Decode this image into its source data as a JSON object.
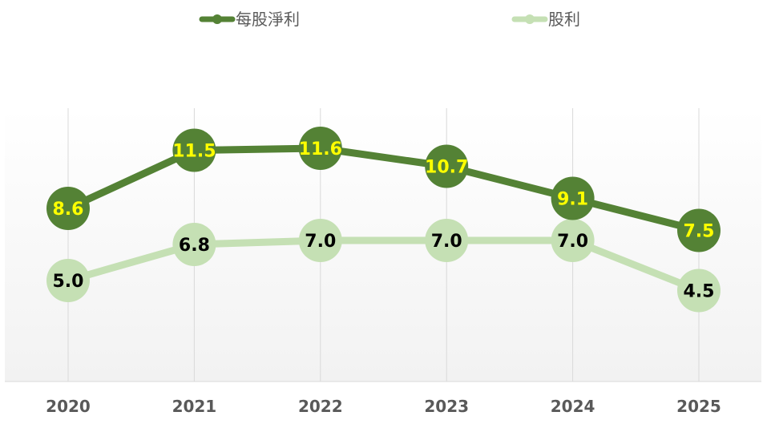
{
  "chart_data": {
    "type": "line",
    "title": "",
    "xlabel": "",
    "ylabel": "",
    "categories": [
      "2020",
      "2021",
      "2022",
      "2023",
      "2024",
      "2025"
    ],
    "ylim": [
      0,
      14
    ],
    "grid": "vertical",
    "legend_position": "top",
    "series": [
      {
        "name": "每股淨利",
        "values": [
          8.6,
          11.5,
          11.6,
          10.7,
          9.1,
          7.5
        ],
        "labels": [
          "8.6",
          "11.5",
          "11.6",
          "10.7",
          "9.1",
          "7.5"
        ],
        "color": "#548235",
        "label_color": "#FFFF00"
      },
      {
        "name": "股利",
        "values": [
          5.0,
          6.8,
          7.0,
          7.0,
          7.0,
          4.5
        ],
        "labels": [
          "5.0",
          "6.8",
          "7.0",
          "7.0",
          "7.0",
          "4.5"
        ],
        "color": "#C5E0B4",
        "label_color": "#000000"
      }
    ]
  }
}
